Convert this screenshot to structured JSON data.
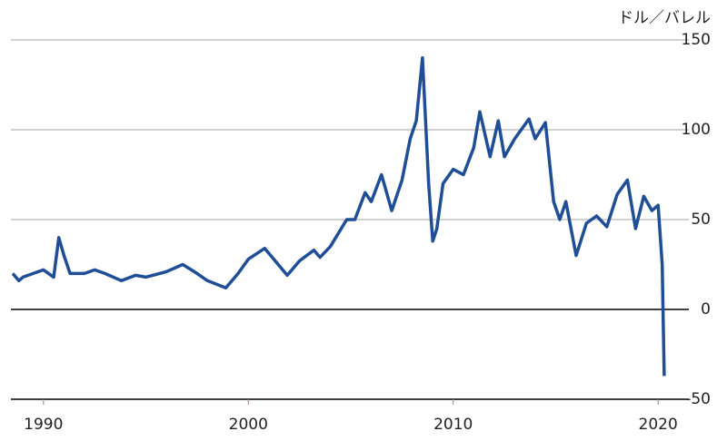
{
  "chart_data": {
    "type": "line",
    "unit_label": "ドル／バレル",
    "x": [
      1988.5,
      1988.8,
      1989.0,
      1989.5,
      1990.0,
      1990.5,
      1990.75,
      1991.0,
      1991.3,
      1992.0,
      1992.5,
      1993.0,
      1993.8,
      1994.5,
      1995.0,
      1996.0,
      1996.8,
      1997.5,
      1998.0,
      1998.9,
      1999.5,
      2000.0,
      2000.8,
      2001.9,
      2002.5,
      2003.2,
      2003.5,
      2004.0,
      2004.8,
      2005.2,
      2005.7,
      2006.0,
      2006.5,
      2007.0,
      2007.5,
      2007.9,
      2008.2,
      2008.5,
      2008.8,
      2009.0,
      2009.2,
      2009.5,
      2010.0,
      2010.5,
      2011.0,
      2011.3,
      2011.8,
      2012.2,
      2012.5,
      2013.0,
      2013.7,
      2014.0,
      2014.5,
      2014.9,
      2015.2,
      2015.5,
      2016.0,
      2016.5,
      2017.0,
      2017.5,
      2018.0,
      2018.5,
      2018.9,
      2019.3,
      2019.7,
      2020.0,
      2020.2,
      2020.3
    ],
    "values": [
      20,
      16,
      18,
      20,
      22,
      18,
      40,
      30,
      20,
      20,
      22,
      20,
      16,
      19,
      18,
      21,
      25,
      20,
      16,
      12,
      20,
      28,
      34,
      19,
      27,
      33,
      29,
      35,
      50,
      50,
      65,
      60,
      75,
      55,
      72,
      95,
      105,
      140,
      70,
      38,
      45,
      70,
      78,
      75,
      90,
      110,
      85,
      105,
      85,
      95,
      106,
      95,
      104,
      60,
      50,
      60,
      30,
      48,
      52,
      46,
      64,
      72,
      45,
      63,
      55,
      58,
      25,
      -37
    ],
    "color": "#1f4e96",
    "xlim": [
      1988.5,
      2021.5
    ],
    "xticks": [
      1990,
      2000,
      2010,
      2020
    ],
    "ylim": [
      -50,
      150
    ],
    "yticks": [
      -50,
      0,
      50,
      100,
      150
    ],
    "grid": true
  }
}
